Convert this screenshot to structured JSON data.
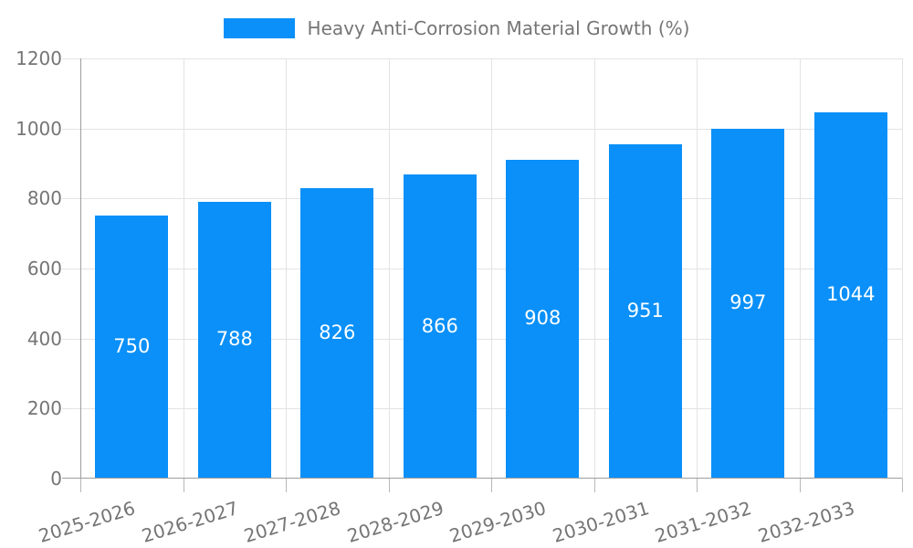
{
  "legend": {
    "label": "Heavy Anti-Corrosion Material Growth (%)"
  },
  "chart_data": {
    "type": "bar",
    "title": "Heavy Anti-Corrosion Material Growth (%)",
    "categories": [
      "2025-2026",
      "2026-2027",
      "2027-2028",
      "2028-2029",
      "2029-2030",
      "2030-2031",
      "2031-2032",
      "2032-2033"
    ],
    "values": [
      750,
      788,
      826,
      866,
      908,
      951,
      997,
      1044
    ],
    "bar_value_labels": [
      "750",
      "788",
      "826",
      "866",
      "908",
      "951",
      "997",
      "1044"
    ],
    "xlabel": "",
    "ylabel": "",
    "ylim": [
      0,
      1200
    ],
    "y_ticks": [
      0,
      200,
      400,
      600,
      800,
      1000,
      1200
    ],
    "grid": true,
    "legend_position": "top-center",
    "value_label_position": "center-inside"
  },
  "colors": {
    "bar": "#0a90f8",
    "bar_label": "#ffffff",
    "grid": "#e3e3e3",
    "axis": "#9e9e9e",
    "tick": "#b8b8b8",
    "text": "#757575",
    "background": "#ffffff"
  }
}
